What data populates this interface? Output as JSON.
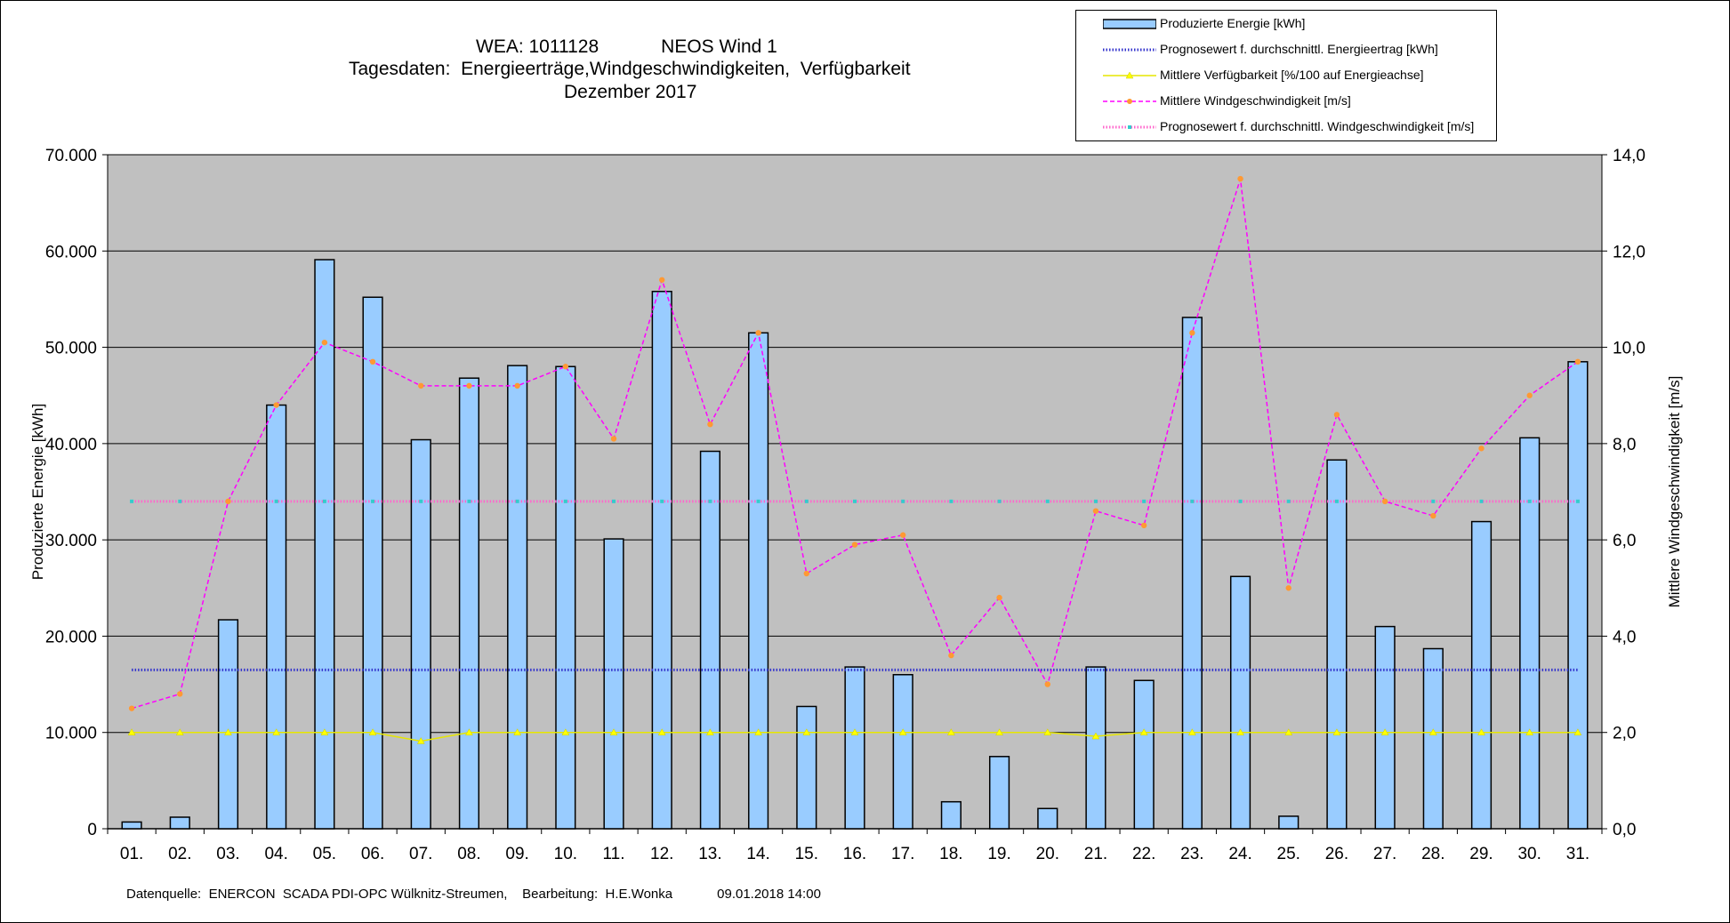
{
  "title": {
    "line1": "WEA: 1011128            NEOS Wind 1",
    "line2": "Tagesdaten:  Energieerträge,Windgeschwindigkeiten,  Verfügbarkeit",
    "line3": "Dezember 2017"
  },
  "legend": [
    {
      "label": "Produzierte Energie [kWh]",
      "kind": "bar"
    },
    {
      "label": "Prognosewert f. durchschnittl. Energieertrag  [kWh]",
      "kind": "dotted-blue"
    },
    {
      "label": "Mittlere Verfügbarkeit [%/100 auf Energieachse]",
      "kind": "yellow-line"
    },
    {
      "label": "Mittlere Windgeschwindigkeit [m/s]",
      "kind": "magenta-dash"
    },
    {
      "label": "Prognosewert f. durchschnittl. Windgeschwindigkeit [m/s]",
      "kind": "dotted-pink"
    }
  ],
  "footer": "Datenquelle:  ENERCON  SCADA PDI-OPC Wülknitz-Streumen,    Bearbeitung:  H.E.Wonka            09.01.2018 14:00",
  "colors": {
    "plot_bg": "#c0c0c0",
    "bar_fill": "#99ccff",
    "bar_stroke": "#000000",
    "energy_forecast": "#3333cc",
    "availability": "#ffff00",
    "availability_marker": "#ffff00",
    "wind": "#ff00ff",
    "wind_marker": "#ff9933",
    "wind_forecast": "#ff66cc",
    "wind_forecast_marker": "#33cccc"
  },
  "chart_data": {
    "type": "bar",
    "categories": [
      "01.",
      "02.",
      "03.",
      "04.",
      "05.",
      "06.",
      "07.",
      "08.",
      "09.",
      "10.",
      "11.",
      "12.",
      "13.",
      "14.",
      "15.",
      "16.",
      "17.",
      "18.",
      "19.",
      "20.",
      "21.",
      "22.",
      "23.",
      "24.",
      "25.",
      "26.",
      "27.",
      "28.",
      "29.",
      "30.",
      "31."
    ],
    "ylabel": "Produzierte Energie [kWh]",
    "y2label": "Mittlere Windgeschwindigkeit [m/s]",
    "ylim": [
      0,
      70000
    ],
    "y2lim": [
      0,
      14
    ],
    "yticks": [
      "0",
      "10.000",
      "20.000",
      "30.000",
      "40.000",
      "50.000",
      "60.000",
      "70.000"
    ],
    "y2ticks": [
      "0,0",
      "2,0",
      "4,0",
      "6,0",
      "8,0",
      "10,0",
      "12,0",
      "14,0"
    ],
    "grid": "horizontal",
    "legend_position": "top-right",
    "series": [
      {
        "name": "Produzierte Energie [kWh]",
        "type": "bar",
        "axis": "left",
        "values": [
          700,
          1200,
          21700,
          44000,
          59100,
          55200,
          40400,
          46800,
          48100,
          48000,
          30100,
          55800,
          39200,
          51500,
          12700,
          16800,
          16000,
          2800,
          7500,
          2100,
          16800,
          15400,
          53100,
          26200,
          1300,
          38300,
          21000,
          18700,
          31900,
          40600,
          48500
        ]
      },
      {
        "name": "Prognosewert f. durchschnittl. Energieertrag  [kWh]",
        "type": "line",
        "axis": "left",
        "values": [
          16500,
          16500,
          16500,
          16500,
          16500,
          16500,
          16500,
          16500,
          16500,
          16500,
          16500,
          16500,
          16500,
          16500,
          16500,
          16500,
          16500,
          16500,
          16500,
          16500,
          16500,
          16500,
          16500,
          16500,
          16500,
          16500,
          16500,
          16500,
          16500,
          16500,
          16500
        ]
      },
      {
        "name": "Mittlere Verfügbarkeit [%/100 auf Energieachse]",
        "type": "line",
        "axis": "left",
        "values": [
          10000,
          10000,
          10000,
          10000,
          10000,
          10000,
          9100,
          10000,
          10000,
          10000,
          10000,
          10000,
          10000,
          10000,
          10000,
          10000,
          10000,
          10000,
          10000,
          10000,
          9600,
          10000,
          10000,
          10000,
          10000,
          10000,
          10000,
          10000,
          10000,
          10000,
          10000
        ]
      },
      {
        "name": "Mittlere Windgeschwindigkeit [m/s]",
        "type": "line",
        "axis": "right",
        "values": [
          2.5,
          2.8,
          6.8,
          8.8,
          10.1,
          9.7,
          9.2,
          9.2,
          9.2,
          9.6,
          8.1,
          11.4,
          8.4,
          10.3,
          5.3,
          5.9,
          6.1,
          3.6,
          4.8,
          3.0,
          6.6,
          6.3,
          10.3,
          13.5,
          5.0,
          8.6,
          6.8,
          6.5,
          7.9,
          9.0,
          9.7
        ]
      },
      {
        "name": "Prognosewert f. durchschnittl. Windgeschwindigkeit [m/s]",
        "type": "line",
        "axis": "right",
        "values": [
          6.8,
          6.8,
          6.8,
          6.8,
          6.8,
          6.8,
          6.8,
          6.8,
          6.8,
          6.8,
          6.8,
          6.8,
          6.8,
          6.8,
          6.8,
          6.8,
          6.8,
          6.8,
          6.8,
          6.8,
          6.8,
          6.8,
          6.8,
          6.8,
          6.8,
          6.8,
          6.8,
          6.8,
          6.8,
          6.8,
          6.8
        ]
      }
    ]
  }
}
